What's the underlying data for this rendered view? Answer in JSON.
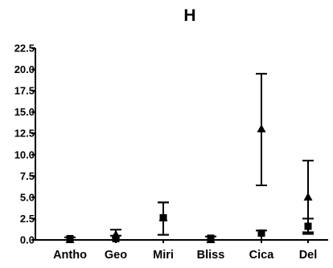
{
  "chart_data": {
    "type": "scatter",
    "title": "H",
    "xlabel": "",
    "ylabel": "",
    "categories": [
      "Antho",
      "Geo",
      "Miri",
      "Bliss",
      "Cica",
      "Del"
    ],
    "ylim": [
      0,
      22.5
    ],
    "yticks": [
      "0.0",
      "2.5",
      "5.0",
      "7.5",
      "10.0",
      "12.5",
      "15.0",
      "17.5",
      "20.0",
      "22.5"
    ],
    "grid": false,
    "series": [
      {
        "marker": "square",
        "color": "#000000",
        "values": [
          0.15,
          0.15,
          2.6,
          0.2,
          0.8,
          1.6
        ],
        "err_low": [
          0.0,
          0.0,
          0.6,
          0.0,
          0.0,
          0.7
        ],
        "err_high": [
          0.3,
          0.5,
          4.4,
          0.4,
          1.1,
          2.5
        ]
      },
      {
        "marker": "triangle",
        "color": "#000000",
        "values": [
          0.0,
          0.6,
          2.6,
          0.0,
          13.0,
          5.0
        ],
        "err_low": [
          0.0,
          0.0,
          0.6,
          0.0,
          6.4,
          0.9
        ],
        "err_high": [
          0.0,
          1.2,
          4.4,
          0.0,
          19.5,
          9.3
        ]
      }
    ]
  }
}
